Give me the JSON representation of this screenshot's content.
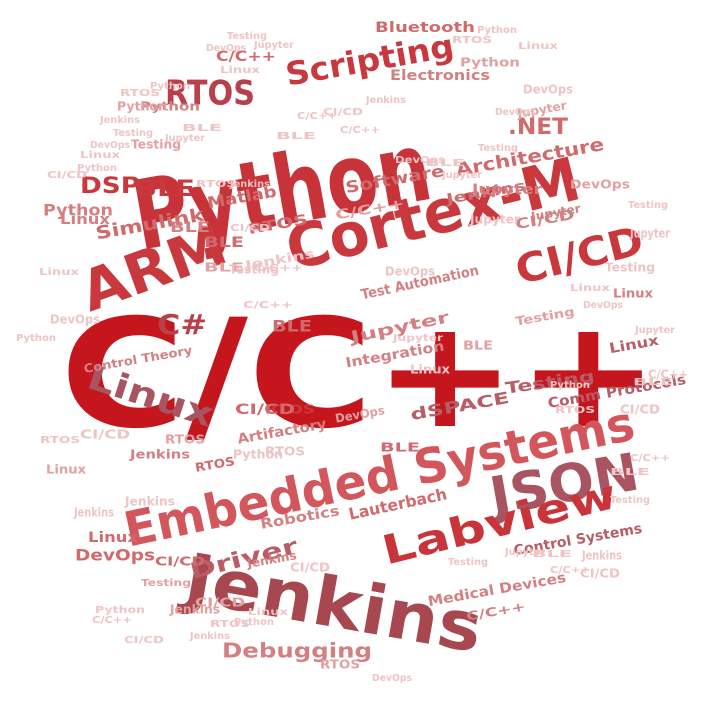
{
  "palette": {
    "primary": "#c4161c",
    "deep": "#b9212b",
    "muted": "#a85561",
    "soft": "#d16a6d",
    "light": "#e3a0a2",
    "pale": "#eec4c5"
  },
  "words": [
    {
      "text": "C/C++",
      "color": "#c4161c"
    },
    {
      "text": "Python",
      "color": "#c83239"
    },
    {
      "text": "Jenkins",
      "color": "#a7474f"
    },
    {
      "text": "Cortex-M",
      "color": "#c9383d"
    },
    {
      "text": "ARM",
      "color": "#c9383d"
    },
    {
      "text": "Embedded Systems",
      "color": "#d4565d"
    },
    {
      "text": "JSON",
      "color": "#a85561"
    },
    {
      "text": "Labview",
      "color": "#c9343a"
    },
    {
      "text": "CI/CD",
      "color": "#c9383d"
    },
    {
      "text": "Linux",
      "color": "#a85561"
    },
    {
      "text": "RTOS",
      "color": "#b9404a"
    },
    {
      "text": "Scripting",
      "color": "#c9383d"
    },
    {
      "text": "C#",
      "color": "#b9404a"
    },
    {
      "text": "Debugging",
      "color": "#d48083"
    },
    {
      "text": "Driver",
      "color": "#b95c66"
    },
    {
      "text": ".NET",
      "color": "#d16a6d"
    },
    {
      "text": "Architecture",
      "color": "#d16a6d"
    },
    {
      "text": "Software",
      "color": "#d16a6d"
    },
    {
      "text": "BLE",
      "color": "#c9383d"
    },
    {
      "text": "DSP",
      "color": "#c9383d"
    },
    {
      "text": "Simulink",
      "color": "#d16a6d"
    },
    {
      "text": "Matlab",
      "color": "#d16a6d"
    },
    {
      "text": "Bluetooth",
      "color": "#d16a6d"
    },
    {
      "text": "Electronics",
      "color": "#d48083"
    },
    {
      "text": "Test Automation",
      "color": "#d48083"
    },
    {
      "text": "Jupyter",
      "color": "#d48083"
    },
    {
      "text": "Testing",
      "color": "#b95c66"
    },
    {
      "text": "Integration",
      "color": "#d48083"
    },
    {
      "text": "dSPACE",
      "color": "#b95c66"
    },
    {
      "text": "Lauterbach",
      "color": "#d16a6d"
    },
    {
      "text": "Robotics",
      "color": "#d48083"
    },
    {
      "text": "Medical Devices",
      "color": "#d48083"
    },
    {
      "text": "Artifactory",
      "color": "#d48083"
    },
    {
      "text": "Comm Protocols",
      "color": "#b95c66"
    },
    {
      "text": "DevOps",
      "color": "#d16a6d"
    },
    {
      "text": "Control Systems",
      "color": "#b95c66"
    },
    {
      "text": "Control Theory",
      "color": "#d48083"
    },
    {
      "text": "Python",
      "color": "#d48083"
    },
    {
      "text": "Jenkins",
      "color": "#d16a6d"
    },
    {
      "text": "Jupyter",
      "color": "#d48083"
    },
    {
      "text": "RTOS",
      "color": "#d16a6d"
    },
    {
      "text": "C/C++",
      "color": "#e3a0a2"
    },
    {
      "text": "CI/CD",
      "color": "#d48083"
    },
    {
      "text": "Linux",
      "color": "#d48083"
    },
    {
      "text": "BLE",
      "color": "#d48083"
    },
    {
      "text": "Testing",
      "color": "#e3a0a2"
    },
    {
      "text": "DevOps",
      "color": "#e3a0a2"
    },
    {
      "text": "RTOS",
      "color": "#c9383d"
    },
    {
      "text": "Jenkins",
      "color": "#d48083"
    },
    {
      "text": "BLE",
      "color": "#d16a6d"
    },
    {
      "text": "Linux",
      "color": "#d16a6d"
    },
    {
      "text": "CI/CD",
      "color": "#d16a6d"
    },
    {
      "text": "Python",
      "color": "#d48083"
    },
    {
      "text": "C/C++",
      "color": "#d16a6d"
    },
    {
      "text": "Jupyter",
      "color": "#e3a0a2"
    },
    {
      "text": "Testing",
      "color": "#e3a0a2"
    },
    {
      "text": "DevOps",
      "color": "#eec4c5"
    },
    {
      "text": "BLE",
      "color": "#d16a6d"
    },
    {
      "text": "Python",
      "color": "#e3a0a2"
    },
    {
      "text": "Jenkins",
      "color": "#d48083"
    },
    {
      "text": "C/C++",
      "color": "#d48083"
    },
    {
      "text": "RTOS",
      "color": "#d16a6d"
    },
    {
      "text": "Linux",
      "color": "#b95c66"
    },
    {
      "text": "CI/CD",
      "color": "#d16a6d"
    },
    {
      "text": "Jupyter",
      "color": "#d48083"
    },
    {
      "text": "BLE",
      "color": "#d16a6d"
    },
    {
      "text": "Testing",
      "color": "#e3a0a2"
    },
    {
      "text": "DevOps",
      "color": "#e3a0a2"
    },
    {
      "text": "Python",
      "color": "#e3a0a2"
    },
    {
      "text": "Linux",
      "color": "#d48083"
    },
    {
      "text": "RTOS",
      "color": "#e3a0a2"
    },
    {
      "text": "Jenkins",
      "color": "#e3a0a2"
    },
    {
      "text": "CI/CD",
      "color": "#e3a0a2"
    },
    {
      "text": "C/C++",
      "color": "#eec4c5"
    },
    {
      "text": "BLE",
      "color": "#e3a0a2"
    },
    {
      "text": "Jupyter",
      "color": "#eec4c5"
    },
    {
      "text": "Testing",
      "color": "#eec4c5"
    },
    {
      "text": "DevOps",
      "color": "#eec4c5"
    },
    {
      "text": "Python",
      "color": "#eec4c5"
    },
    {
      "text": "Linux",
      "color": "#e3a0a2"
    },
    {
      "text": "RTOS",
      "color": "#e3a0a2"
    },
    {
      "text": "Jenkins",
      "color": "#eec4c5"
    },
    {
      "text": "CI/CD",
      "color": "#eec4c5"
    },
    {
      "text": "C/C++",
      "color": "#eec4c5"
    },
    {
      "text": "BLE",
      "color": "#e3a0a2"
    },
    {
      "text": "Jupyter",
      "color": "#eec4c5"
    },
    {
      "text": "Testing",
      "color": "#eec4c5"
    },
    {
      "text": "DevOps",
      "color": "#eec4c5"
    },
    {
      "text": "Python",
      "color": "#eec4c5"
    },
    {
      "text": "Linux",
      "color": "#eec4c5"
    },
    {
      "text": "RTOS",
      "color": "#eec4c5"
    },
    {
      "text": "Jenkins",
      "color": "#eec4c5"
    },
    {
      "text": "CI/CD",
      "color": "#eec4c5"
    },
    {
      "text": "C/C++",
      "color": "#eec4c5"
    },
    {
      "text": "BLE",
      "color": "#eec4c5"
    },
    {
      "text": "Jupyter",
      "color": "#eec4c5"
    },
    {
      "text": "Testing",
      "color": "#eec4c5"
    },
    {
      "text": "DevOps",
      "color": "#eec4c5"
    },
    {
      "text": "Python",
      "color": "#eec4c5"
    },
    {
      "text": "Linux",
      "color": "#eec4c5"
    },
    {
      "text": "RTOS",
      "color": "#eec4c5"
    },
    {
      "text": "Jenkins",
      "color": "#eec4c5"
    },
    {
      "text": "CI/CD",
      "color": "#eec4c5"
    },
    {
      "text": "C/C++",
      "color": "#eec4c5"
    },
    {
      "text": "BLE",
      "color": "#eec4c5"
    },
    {
      "text": "Jupyter",
      "color": "#eec4c5"
    },
    {
      "text": "Testing",
      "color": "#eec4c5"
    },
    {
      "text": "DevOps",
      "color": "#eec4c5"
    },
    {
      "text": "Linux",
      "color": "#eec4c5"
    },
    {
      "text": "Python",
      "color": "#eec4c5"
    },
    {
      "text": "RTOS",
      "color": "#eec4c5"
    },
    {
      "text": "Jenkins",
      "color": "#eec4c5"
    },
    {
      "text": "CI/CD",
      "color": "#eec4c5"
    },
    {
      "text": "C/C++",
      "color": "#eec4c5"
    },
    {
      "text": "BLE",
      "color": "#eec4c5"
    },
    {
      "text": "Jupyter",
      "color": "#eec4c5"
    },
    {
      "text": "Testing",
      "color": "#eec4c5"
    },
    {
      "text": "DevOps",
      "color": "#eec4c5"
    },
    {
      "text": "Linux",
      "color": "#eec4c5"
    },
    {
      "text": "Python",
      "color": "#eec4c5"
    },
    {
      "text": "RTOS",
      "color": "#eec4c5"
    },
    {
      "text": "Jenkins",
      "color": "#eec4c5"
    },
    {
      "text": "CI/CD",
      "color": "#eec4c5"
    },
    {
      "text": "C/C++",
      "color": "#eec4c5"
    },
    {
      "text": "BLE",
      "color": "#eec4c5"
    },
    {
      "text": "Jupyter",
      "color": "#eec4c5"
    },
    {
      "text": "Testing",
      "color": "#eec4c5"
    },
    {
      "text": "DevOps",
      "color": "#eec4c5"
    },
    {
      "text": "Linux",
      "color": "#eec4c5"
    },
    {
      "text": "Python",
      "color": "#eec4c5"
    },
    {
      "text": "RTOS",
      "color": "#eec4c5"
    },
    {
      "text": "Jenkins",
      "color": "#eec4c5"
    },
    {
      "text": "CI/CD",
      "color": "#eec4c5"
    },
    {
      "text": "C/C++",
      "color": "#eec4c5"
    },
    {
      "text": "BLE",
      "color": "#eec4c5"
    },
    {
      "text": "Jupyter",
      "color": "#eec4c5"
    },
    {
      "text": "Testing",
      "color": "#eec4c5"
    },
    {
      "text": "DevOps",
      "color": "#eec4c5"
    },
    {
      "text": "Linux",
      "color": "#eec4c5"
    },
    {
      "text": "Python",
      "color": "#eec4c5"
    },
    {
      "text": "RTOS",
      "color": "#eec4c5"
    },
    {
      "text": "Jenkins",
      "color": "#eec4c5"
    },
    {
      "text": "CI/CD",
      "color": "#eec4c5"
    },
    {
      "text": "C/C++",
      "color": "#eec4c5"
    },
    {
      "text": "BLE",
      "color": "#eec4c5"
    },
    {
      "text": "Jupyter",
      "color": "#eec4c5"
    },
    {
      "text": "Testing",
      "color": "#eec4c5"
    },
    {
      "text": "DevOps",
      "color": "#eec4c5"
    },
    {
      "text": "Linux",
      "color": "#eec4c5"
    },
    {
      "text": "Python",
      "color": "#eec4c5"
    },
    {
      "text": "RTOS",
      "color": "#eec4c5"
    },
    {
      "text": "Jenkins",
      "color": "#eec4c5"
    },
    {
      "text": "CI/CD",
      "color": "#eec4c5"
    }
  ]
}
